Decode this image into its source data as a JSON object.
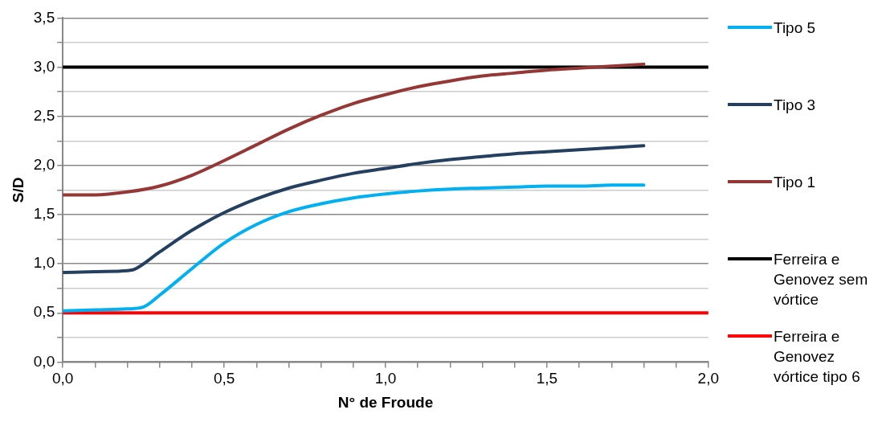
{
  "chart_data": {
    "type": "line",
    "xlabel": "N° de Froude",
    "ylabel": "S/D",
    "xlim": [
      0,
      2
    ],
    "ylim": [
      0,
      3.5
    ],
    "xticks": [
      {
        "value": 0,
        "label": "0,0"
      },
      {
        "value": 0.1,
        "label": null
      },
      {
        "value": 0.2,
        "label": null
      },
      {
        "value": 0.3,
        "label": null
      },
      {
        "value": 0.4,
        "label": null
      },
      {
        "value": 0.5,
        "label": "0,5"
      },
      {
        "value": 0.6,
        "label": null
      },
      {
        "value": 0.7,
        "label": null
      },
      {
        "value": 0.8,
        "label": null
      },
      {
        "value": 0.9,
        "label": null
      },
      {
        "value": 1,
        "label": "1,0"
      },
      {
        "value": 1.1,
        "label": null
      },
      {
        "value": 1.2,
        "label": null
      },
      {
        "value": 1.3,
        "label": null
      },
      {
        "value": 1.4,
        "label": null
      },
      {
        "value": 1.5,
        "label": "1,5"
      },
      {
        "value": 1.6,
        "label": null
      },
      {
        "value": 1.7,
        "label": null
      },
      {
        "value": 1.8,
        "label": null
      },
      {
        "value": 1.9,
        "label": null
      },
      {
        "value": 2,
        "label": "2,0"
      }
    ],
    "yticks": [
      {
        "value": 0,
        "label": "0,0"
      },
      {
        "value": 0.25,
        "label": null
      },
      {
        "value": 0.5,
        "label": "0,5"
      },
      {
        "value": 0.75,
        "label": null
      },
      {
        "value": 1,
        "label": "1,0"
      },
      {
        "value": 1.25,
        "label": null
      },
      {
        "value": 1.5,
        "label": "1,5"
      },
      {
        "value": 1.75,
        "label": null
      },
      {
        "value": 2,
        "label": "2,0"
      },
      {
        "value": 2.25,
        "label": null
      },
      {
        "value": 2.5,
        "label": "2,5"
      },
      {
        "value": 2.75,
        "label": null
      },
      {
        "value": 3,
        "label": "3,0"
      },
      {
        "value": 3.25,
        "label": null
      },
      {
        "value": 3.5,
        "label": "3,5"
      }
    ],
    "grid": "y",
    "legend": "right",
    "marker": "none",
    "line_style": "solid",
    "series": [
      {
        "name": "Tipo 5",
        "color": "#00b0f0",
        "x": [
          0,
          0.1,
          0.2,
          0.25,
          0.3,
          0.4,
          0.5,
          0.6,
          0.7,
          0.8,
          0.9,
          1,
          1.1,
          1.2,
          1.3,
          1.4,
          1.5,
          1.6,
          1.7,
          1.8
        ],
        "values": [
          0.52,
          0.53,
          0.54,
          0.56,
          0.68,
          0.95,
          1.21,
          1.4,
          1.53,
          1.61,
          1.67,
          1.71,
          1.74,
          1.76,
          1.77,
          1.78,
          1.79,
          1.79,
          1.8,
          1.8
        ]
      },
      {
        "name": "Tipo 3",
        "color": "#243f60",
        "x": [
          0,
          0.1,
          0.2,
          0.22,
          0.3,
          0.4,
          0.5,
          0.6,
          0.7,
          0.8,
          0.9,
          1,
          1.1,
          1.2,
          1.3,
          1.4,
          1.5,
          1.6,
          1.7,
          1.8
        ],
        "values": [
          0.91,
          0.92,
          0.93,
          0.94,
          1.12,
          1.34,
          1.52,
          1.66,
          1.77,
          1.85,
          1.92,
          1.97,
          2.02,
          2.06,
          2.09,
          2.12,
          2.14,
          2.16,
          2.18,
          2.2
        ]
      },
      {
        "name": "Tipo 1",
        "color": "#953735",
        "x": [
          0,
          0.1,
          0.2,
          0.3,
          0.4,
          0.5,
          0.6,
          0.7,
          0.8,
          0.9,
          1,
          1.1,
          1.2,
          1.3,
          1.4,
          1.5,
          1.6,
          1.7,
          1.8
        ],
        "values": [
          1.7,
          1.7,
          1.73,
          1.79,
          1.9,
          2.05,
          2.21,
          2.37,
          2.51,
          2.63,
          2.72,
          2.8,
          2.86,
          2.91,
          2.94,
          2.97,
          2.99,
          3.01,
          3.03
        ]
      },
      {
        "name": "Ferreira e Genovez sem vórtice",
        "color": "#000000",
        "x": [
          0,
          2
        ],
        "values": [
          3,
          3
        ]
      },
      {
        "name": "Ferreira e Genovez vórtice tipo 6",
        "color": "#ff0000",
        "x": [
          0,
          2
        ],
        "values": [
          0.5,
          0.5
        ]
      }
    ]
  }
}
